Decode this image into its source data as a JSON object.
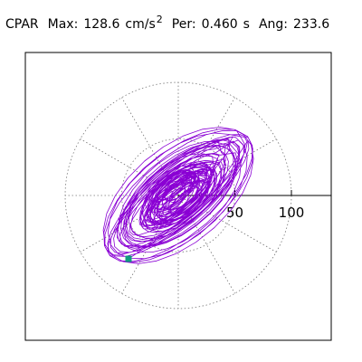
{
  "header": {
    "station": "CPAR",
    "max_label": "Max:",
    "max_value": "128.6",
    "max_unit": "cm/s",
    "max_unit_sup": "2",
    "per_label": "Per:",
    "per_value": "0.460",
    "per_unit": "s",
    "ang_label": "Ang:",
    "ang_value": "233.6"
  },
  "colors": {
    "trace": "#8a00d4",
    "end_marker": "#0f9e7e",
    "grid": "#777777",
    "frame": "#000000"
  },
  "chart_data": {
    "type": "scatter",
    "plot": "polar particle-motion hodogram",
    "radial_rings": [
      50,
      100
    ],
    "radial_tick_labels": [
      "50",
      "100"
    ],
    "angular_spokes_deg": [
      0,
      30,
      60,
      90,
      120,
      150,
      180,
      210,
      240,
      270,
      300,
      330
    ],
    "grid": true,
    "max_amplitude": 128.6,
    "period_s": 0.46,
    "angle_deg": 233.6,
    "end_point": {
      "x": -44,
      "y": -56
    }
  }
}
